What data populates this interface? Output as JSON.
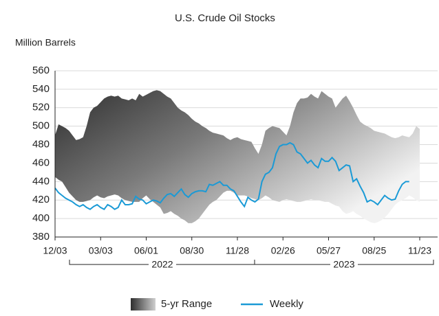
{
  "chart_data": {
    "type": "band-line",
    "title": "U.S. Crude Oil Stocks",
    "y_label": "Million Barrels",
    "categories": [
      "12/03",
      null,
      null,
      null,
      null,
      null,
      null,
      null,
      null,
      null,
      null,
      null,
      null,
      "03/03",
      null,
      null,
      null,
      null,
      null,
      null,
      null,
      null,
      null,
      null,
      null,
      null,
      "06/01",
      null,
      null,
      null,
      null,
      null,
      null,
      null,
      null,
      null,
      null,
      null,
      null,
      "08/30",
      null,
      null,
      null,
      null,
      null,
      null,
      null,
      null,
      null,
      null,
      null,
      null,
      "11/28",
      null,
      null,
      null,
      null,
      null,
      null,
      null,
      null,
      null,
      null,
      null,
      null,
      "02/26",
      null,
      null,
      null,
      null,
      null,
      null,
      null,
      null,
      null,
      null,
      null,
      null,
      "05/27",
      null,
      null,
      null,
      null,
      null,
      null,
      null,
      null,
      null,
      null,
      null,
      null,
      "08/25",
      null,
      null,
      null,
      null,
      null,
      null,
      null,
      null,
      null,
      null,
      null,
      null,
      "11/23"
    ],
    "year_labels": [
      "2022",
      "2023"
    ],
    "ylim": [
      380,
      560
    ],
    "yticks": [
      380,
      400,
      420,
      440,
      460,
      480,
      500,
      520,
      540,
      560
    ],
    "grid": true,
    "series": [
      {
        "name": "5-yr Range",
        "type": "band",
        "color": "#555555",
        "high": [
          490,
          502,
          500,
          498,
          495,
          490,
          485,
          486,
          488,
          500,
          515,
          520,
          522,
          526,
          530,
          532,
          533,
          532,
          533,
          530,
          529,
          528,
          530,
          528,
          535,
          532,
          534,
          536,
          538,
          539,
          538,
          535,
          532,
          530,
          525,
          520,
          517,
          515,
          512,
          508,
          505,
          503,
          500,
          498,
          495,
          493,
          492,
          491,
          490,
          487,
          485,
          487,
          488,
          486,
          485,
          484,
          483,
          476,
          470,
          480,
          495,
          498,
          500,
          499,
          498,
          494,
          490,
          500,
          515,
          525,
          530,
          530,
          531,
          535,
          532,
          530,
          538,
          535,
          532,
          530,
          520,
          525,
          530,
          533,
          527,
          520,
          512,
          505,
          502,
          500,
          498,
          495,
          494,
          493,
          492,
          490,
          488,
          487,
          488,
          490,
          489,
          488,
          492,
          500,
          497
        ],
        "low": [
          445,
          442,
          440,
          434,
          428,
          424,
          420,
          418,
          418,
          419,
          420,
          423,
          425,
          423,
          422,
          424,
          425,
          426,
          425,
          422,
          420,
          419,
          418,
          418,
          418,
          422,
          425,
          421,
          418,
          415,
          412,
          405,
          406,
          408,
          405,
          403,
          400,
          398,
          395,
          395,
          397,
          400,
          405,
          410,
          415,
          418,
          420,
          424,
          428,
          430,
          430,
          428,
          425,
          425,
          425,
          424,
          422,
          421,
          420,
          422,
          425,
          423,
          420,
          419,
          418,
          420,
          421,
          420,
          419,
          418,
          418,
          419,
          420,
          421,
          420,
          420,
          419,
          418,
          418,
          416,
          414,
          413,
          408,
          405,
          406,
          408,
          405,
          403,
          400,
          398,
          396,
          395,
          396,
          398,
          401,
          405,
          410,
          415,
          418,
          420,
          422,
          425,
          423,
          420,
          418
        ]
      },
      {
        "name": "Weekly",
        "type": "line",
        "color": "#1a9ad6",
        "values": [
          433,
          428,
          425,
          422,
          420,
          418,
          415,
          413,
          415,
          412,
          410,
          413,
          415,
          412,
          410,
          415,
          413,
          410,
          412,
          420,
          415,
          415,
          416,
          424,
          421,
          420,
          416,
          418,
          420,
          419,
          417,
          422,
          426,
          427,
          424,
          428,
          432,
          426,
          423,
          427,
          429,
          430,
          430,
          429,
          437,
          436,
          438,
          440,
          436,
          436,
          432,
          430,
          424,
          418,
          413,
          423,
          420,
          418,
          421,
          440,
          448,
          450,
          455,
          470,
          478,
          480,
          480,
          482,
          480,
          472,
          470,
          465,
          460,
          463,
          458,
          455,
          465,
          462,
          462,
          466,
          462,
          452,
          455,
          458,
          457,
          440,
          443,
          435,
          428,
          418,
          420,
          418,
          415,
          420,
          425,
          422,
          420,
          421,
          430,
          437,
          440,
          440,
          null,
          null,
          null
        ]
      }
    ]
  }
}
